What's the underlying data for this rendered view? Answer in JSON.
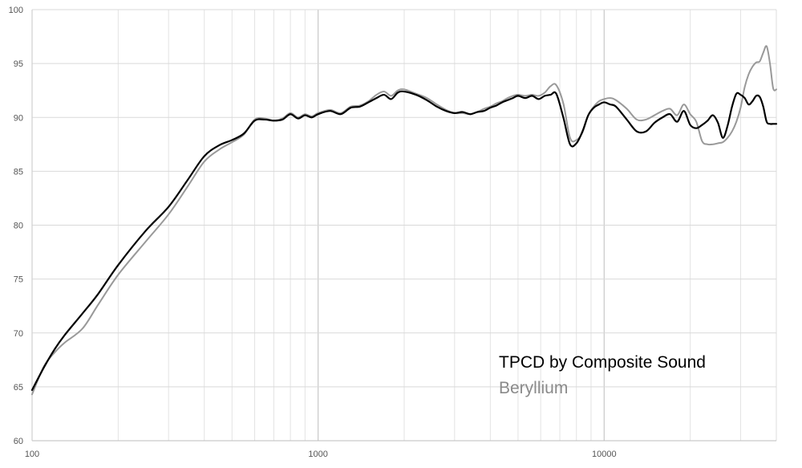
{
  "chart_data": {
    "type": "line",
    "title": "",
    "xlabel": "",
    "ylabel": "",
    "x_scale": "log",
    "xlim": [
      100,
      40000
    ],
    "ylim": [
      60,
      100
    ],
    "grid": true,
    "legend_placement": "bottom-right",
    "x_ticks": [
      "100",
      "1000",
      "10000"
    ],
    "y_ticks": [
      "60",
      "65",
      "70",
      "75",
      "80",
      "85",
      "90",
      "95",
      "100"
    ],
    "x_tick_values": [
      100,
      1000,
      10000
    ],
    "y_tick_values": [
      60,
      65,
      70,
      75,
      80,
      85,
      90,
      95,
      100
    ],
    "series": [
      {
        "name": "TPCD by Composite Sound",
        "color": "#000000",
        "x": [
          100,
          110,
          120,
          130,
          150,
          170,
          200,
          250,
          300,
          350,
          400,
          450,
          500,
          550,
          600,
          650,
          700,
          750,
          800,
          850,
          900,
          950,
          1000,
          1100,
          1200,
          1300,
          1400,
          1500,
          1600,
          1700,
          1800,
          1900,
          2000,
          2200,
          2400,
          2600,
          2800,
          3000,
          3200,
          3400,
          3600,
          3800,
          4000,
          4200,
          4400,
          4600,
          4800,
          5000,
          5300,
          5600,
          5900,
          6200,
          6500,
          6800,
          7200,
          7600,
          8000,
          8400,
          8800,
          9200,
          9600,
          10000,
          10500,
          11000,
          12000,
          13000,
          14000,
          15000,
          16000,
          17000,
          18000,
          19000,
          20000,
          21000,
          22000,
          23000,
          24000,
          25000,
          26000,
          27000,
          28000,
          29000,
          30000,
          31000,
          32000,
          33000,
          34000,
          35000,
          36000,
          37000,
          38000,
          39000,
          40000
        ],
        "values": [
          64.7,
          66.8,
          68.5,
          69.8,
          71.8,
          73.6,
          76.3,
          79.5,
          81.7,
          84.2,
          86.4,
          87.4,
          87.9,
          88.5,
          89.7,
          89.8,
          89.7,
          89.8,
          90.3,
          89.9,
          90.2,
          90.0,
          90.3,
          90.6,
          90.3,
          90.9,
          91.0,
          91.4,
          91.8,
          92.1,
          91.7,
          92.3,
          92.4,
          92.1,
          91.6,
          91.0,
          90.6,
          90.4,
          90.5,
          90.3,
          90.5,
          90.6,
          90.9,
          91.1,
          91.4,
          91.6,
          91.8,
          92.0,
          91.8,
          92.0,
          91.7,
          92.0,
          92.1,
          92.2,
          90.0,
          87.5,
          87.6,
          88.7,
          90.2,
          90.9,
          91.2,
          91.4,
          91.2,
          91.0,
          89.8,
          88.7,
          88.7,
          89.5,
          90.0,
          90.3,
          89.6,
          90.6,
          89.3,
          89.0,
          89.3,
          89.7,
          90.2,
          89.5,
          88.1,
          89.2,
          91.0,
          92.2,
          92.1,
          91.8,
          91.2,
          91.5,
          92.0,
          91.9,
          91.0,
          89.6,
          89.4,
          89.4,
          89.4
        ]
      },
      {
        "name": "Beryllium",
        "color": "#999999",
        "x": [
          100,
          110,
          120,
          130,
          150,
          170,
          200,
          250,
          300,
          350,
          400,
          450,
          500,
          550,
          600,
          650,
          700,
          750,
          800,
          850,
          900,
          950,
          1000,
          1100,
          1200,
          1300,
          1400,
          1500,
          1600,
          1700,
          1800,
          1900,
          2000,
          2200,
          2400,
          2600,
          2800,
          3000,
          3200,
          3400,
          3600,
          3800,
          4000,
          4200,
          4400,
          4600,
          4800,
          5000,
          5300,
          5600,
          5900,
          6200,
          6500,
          6800,
          7200,
          7600,
          8000,
          8400,
          8800,
          9200,
          9600,
          10000,
          10500,
          11000,
          12000,
          13000,
          14000,
          15000,
          16000,
          17000,
          18000,
          19000,
          20000,
          21000,
          22000,
          23000,
          24000,
          25000,
          26000,
          27000,
          28000,
          29000,
          30000,
          31000,
          32000,
          33000,
          34000,
          35000,
          36000,
          37000,
          38000,
          39000,
          40000
        ],
        "values": [
          64.3,
          66.9,
          68.2,
          69.1,
          70.4,
          72.6,
          75.4,
          78.5,
          81.0,
          83.6,
          85.9,
          87.0,
          87.7,
          88.4,
          89.8,
          89.9,
          89.7,
          89.9,
          90.4,
          90.0,
          90.3,
          90.1,
          90.4,
          90.7,
          90.4,
          91.0,
          91.1,
          91.5,
          92.1,
          92.4,
          92.0,
          92.5,
          92.6,
          92.2,
          91.8,
          91.2,
          90.7,
          90.4,
          90.4,
          90.3,
          90.5,
          90.8,
          91.0,
          91.3,
          91.5,
          91.8,
          92.0,
          92.1,
          92.0,
          92.1,
          92.0,
          92.3,
          92.9,
          93.0,
          91.3,
          88.1,
          87.9,
          88.6,
          90.2,
          91.0,
          91.5,
          91.7,
          91.8,
          91.6,
          90.8,
          89.8,
          89.8,
          90.2,
          90.6,
          90.8,
          90.2,
          91.2,
          90.3,
          89.6,
          87.8,
          87.5,
          87.5,
          87.6,
          87.7,
          88.1,
          88.7,
          89.6,
          90.9,
          92.8,
          94.0,
          94.7,
          95.1,
          95.2,
          96.0,
          96.6,
          95.0,
          92.7,
          92.6
        ]
      }
    ]
  }
}
